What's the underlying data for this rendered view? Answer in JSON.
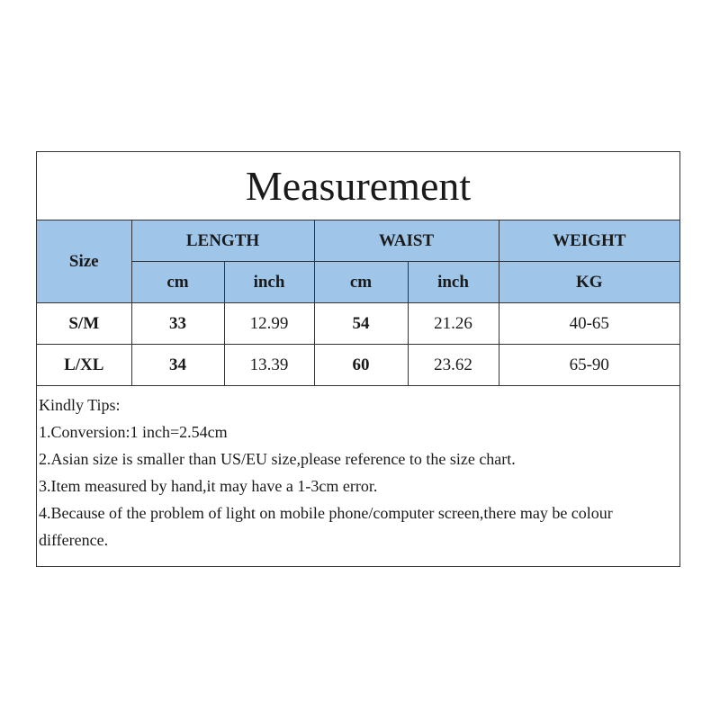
{
  "title": "Measurement",
  "headers": {
    "size": "Size",
    "length": "LENGTH",
    "waist": "WAIST",
    "weight": "WEIGHT",
    "cm": "cm",
    "inch": "inch",
    "kg": "KG"
  },
  "header_color": "#9fc5e8",
  "rows": [
    {
      "size": "S/M",
      "length_cm": "33",
      "length_inch": "12.99",
      "waist_cm": "54",
      "waist_inch": "21.26",
      "weight": "40-65"
    },
    {
      "size": "L/XL",
      "length_cm": "34",
      "length_inch": "13.39",
      "waist_cm": "60",
      "waist_inch": "23.62",
      "weight": "65-90"
    }
  ],
  "tips": [
    "Kindly Tips:",
    "1.Conversion:1 inch=2.54cm",
    "2.Asian size is smaller than US/EU size,please reference to the size chart.",
    "3.Item measured by hand,it may have a 1-3cm error.",
    "4.Because of the problem of light on mobile phone/computer screen,there may  be colour difference."
  ]
}
